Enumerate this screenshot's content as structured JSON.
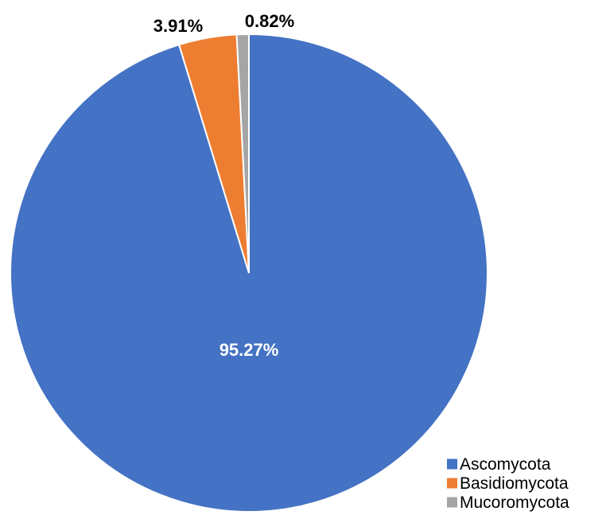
{
  "chart_data": {
    "type": "pie",
    "categories": [
      "Ascomycota",
      "Basidiomycota",
      "Mucoromycota"
    ],
    "values": [
      95.27,
      3.91,
      0.82
    ],
    "value_labels": [
      "95.27%",
      "3.91%",
      "0.82%"
    ],
    "colors": [
      "#4472C4",
      "#ED7D31",
      "#A5A5A5"
    ],
    "label_colors": [
      "#FFFFFF",
      "#000000",
      "#000000"
    ],
    "start_angle_deg": 0,
    "direction": "clockwise",
    "legend": {
      "entries": [
        "Ascomycota",
        "Basidiomycota",
        "Mucoromycota"
      ],
      "placement": "bottom-right"
    }
  }
}
